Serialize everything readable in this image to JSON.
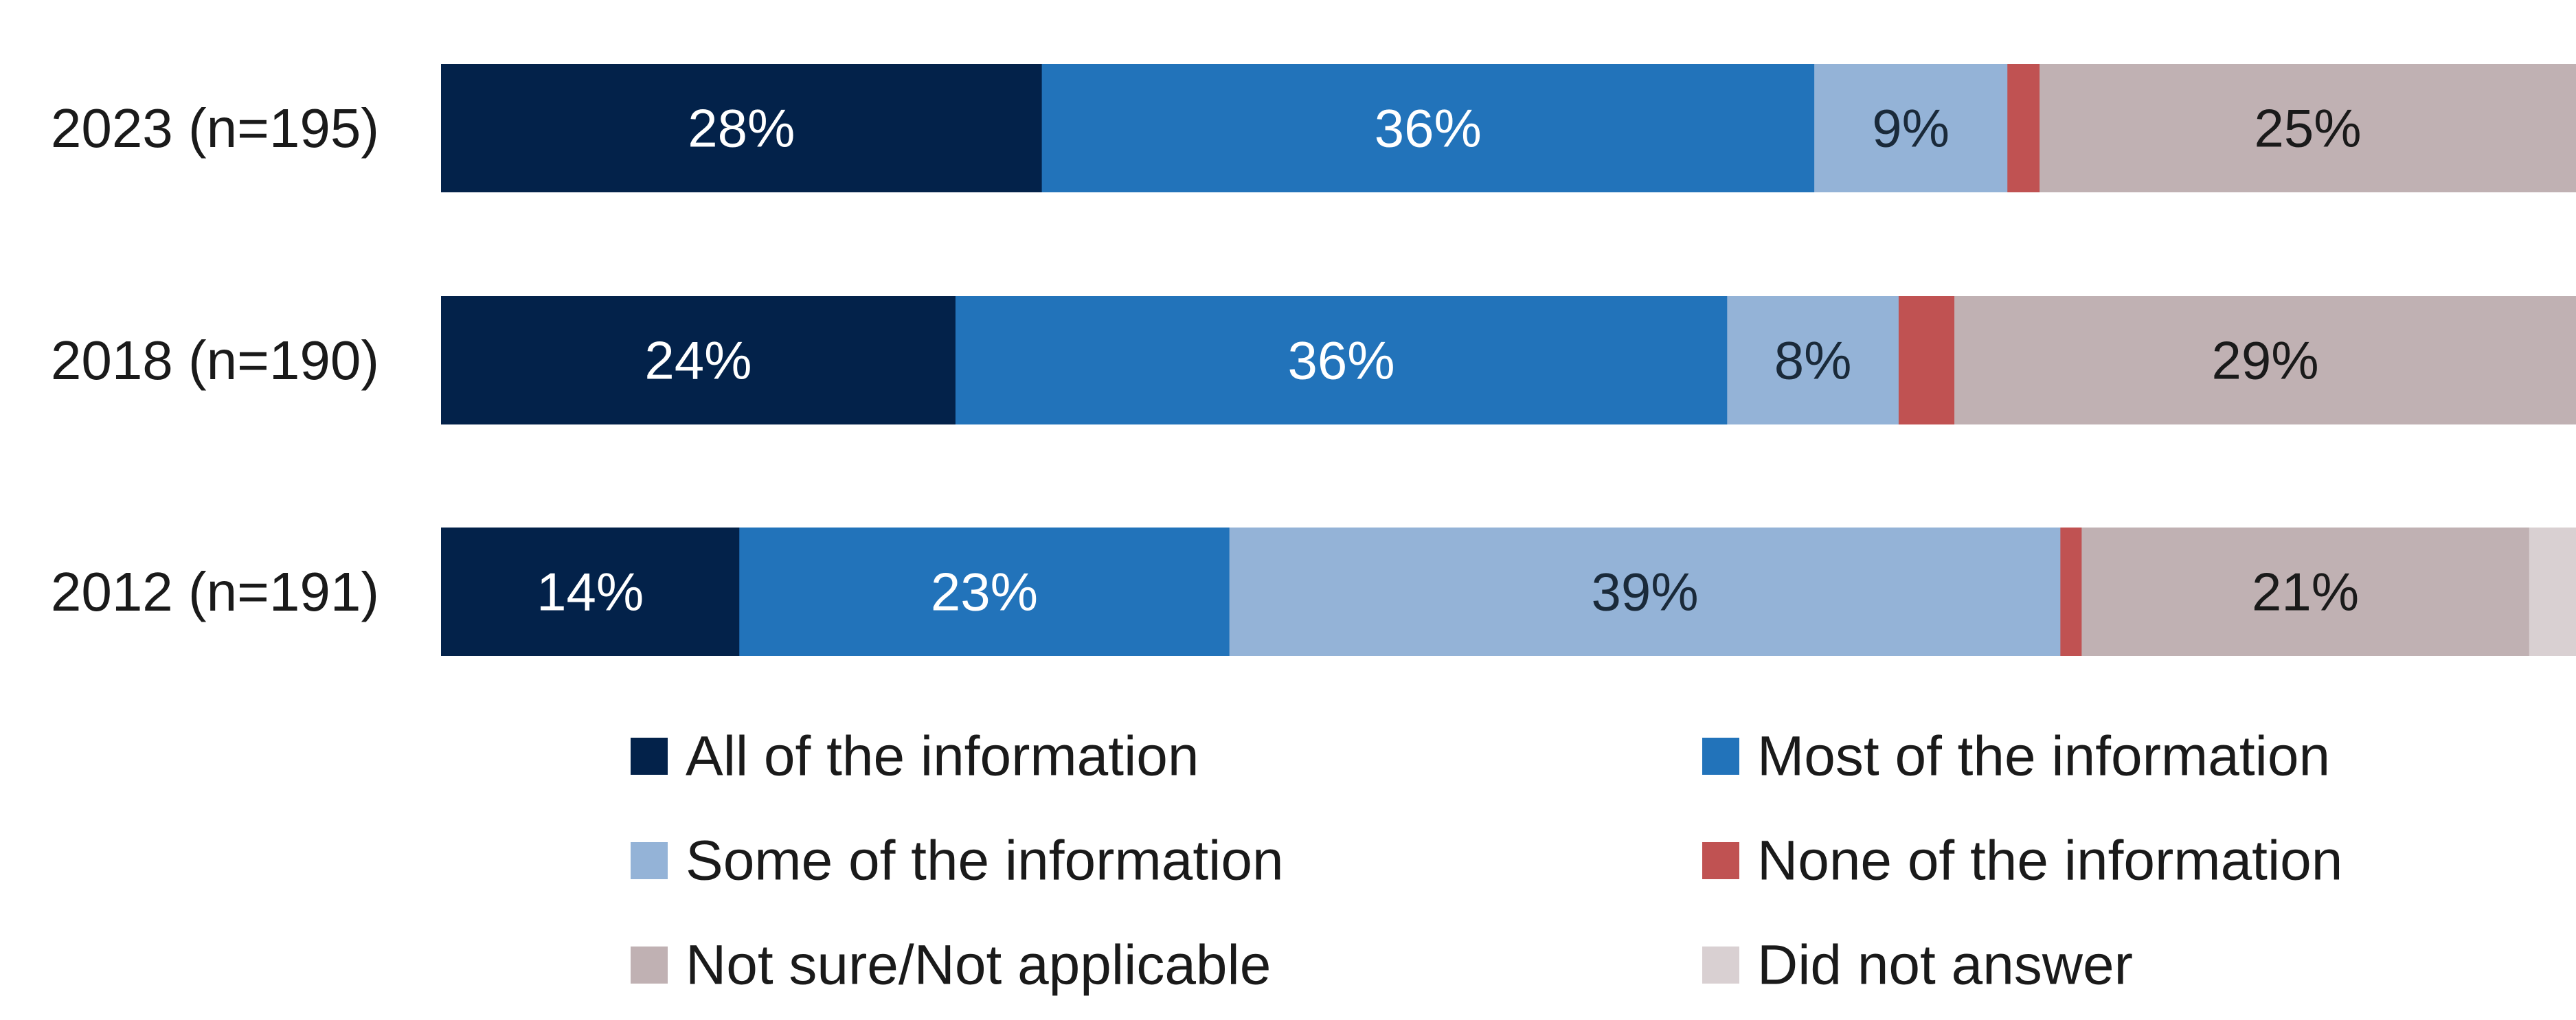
{
  "chart_data": {
    "type": "bar",
    "orientation": "horizontal",
    "stacked": true,
    "categories": [
      "2023 (n=195)",
      "2018 (n=190)",
      "2012 (n=191)"
    ],
    "xlim": [
      0,
      100
    ],
    "grid": false,
    "legend_position": "bottom",
    "series": [
      {
        "name": "All of the information",
        "color": "#03224a",
        "label_color": "#ffffff",
        "values": [
          28,
          24,
          14
        ],
        "labels": [
          "28%",
          "24%",
          "14%"
        ]
      },
      {
        "name": "Most of the information",
        "color": "#2273ba",
        "label_color": "#ffffff",
        "values": [
          36,
          36,
          23
        ],
        "labels": [
          "36%",
          "36%",
          "23%"
        ]
      },
      {
        "name": "Some of the information",
        "color": "#94b3d7",
        "label_color": "#1a2a3a",
        "values": [
          9,
          8,
          39
        ],
        "labels": [
          "9%",
          "8%",
          "39%"
        ]
      },
      {
        "name": "None of the information",
        "color": "#c05252",
        "label_color": "#1a1a1a",
        "values": [
          1.5,
          2.6,
          1
        ],
        "labels": [
          "",
          "",
          ""
        ]
      },
      {
        "name": "Not sure/Not applicable",
        "color": "#c0b1b3",
        "label_color": "#1a1a1a",
        "values": [
          25,
          29,
          21
        ],
        "labels": [
          "25%",
          "29%",
          "21%"
        ]
      },
      {
        "name": "Did not answer",
        "color": "#d9d0d2",
        "label_color": "#1a1a1a",
        "values": [
          0,
          0,
          2.2
        ],
        "labels": [
          "",
          "",
          ""
        ]
      }
    ]
  }
}
